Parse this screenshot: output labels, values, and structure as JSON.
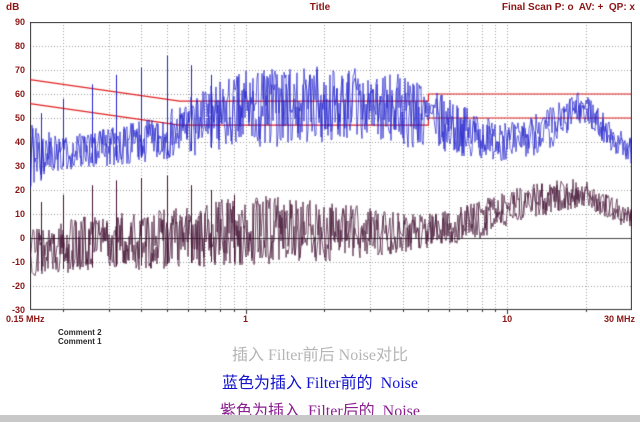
{
  "header": {
    "y_unit": "dB",
    "title": "Title",
    "scan_info": "Final Scan P: o  AV: +  QP: x",
    "text_color": "#8b1414"
  },
  "comments": {
    "comment2": "Comment 2",
    "comment1": "Comment 1"
  },
  "captions": [
    {
      "text": "插入 Filter前后 Noise对比",
      "color": "#b5b5b5"
    },
    {
      "text": "蓝色为插入 Filter前的  Noise",
      "color": "#1212cf"
    },
    {
      "text": "紫色为插入  Filter后的  Noise",
      "color": "#8a2090"
    }
  ],
  "chart_data": {
    "type": "line",
    "title": "Title",
    "x_axis": {
      "scale": "log",
      "unit": "MHz",
      "min_mhz": 0.15,
      "max_mhz": 30,
      "ticks": [
        {
          "label": "0.15 MHz",
          "mhz": 0.15,
          "align": "left"
        },
        {
          "label": "1",
          "mhz": 1,
          "align": "center"
        },
        {
          "label": "10",
          "mhz": 10,
          "align": "center"
        },
        {
          "label": "30 MHz",
          "mhz": 30,
          "align": "right"
        }
      ]
    },
    "y_axis": {
      "label": "dB",
      "min": -30,
      "max": 90,
      "step": 10,
      "tick_labels": [
        90,
        80,
        70,
        60,
        50,
        40,
        30,
        20,
        10,
        0,
        -10,
        -20,
        -30
      ]
    },
    "grid": {
      "show": true,
      "style": "dotted",
      "v_lines_mhz": [
        0.2,
        0.3,
        0.4,
        0.5,
        0.6,
        0.7,
        0.8,
        0.9,
        1,
        2,
        3,
        4,
        5,
        6,
        7,
        8,
        9,
        10,
        20
      ],
      "zero_line_db": 0
    },
    "limit_lines": [
      {
        "id": "limit-upper-qp",
        "marker": "QP: x",
        "color": "#e02020",
        "points_mhz_db": [
          [
            0.15,
            66
          ],
          [
            0.56,
            57
          ],
          [
            5,
            57
          ],
          [
            5,
            60
          ],
          [
            30,
            60
          ]
        ]
      },
      {
        "id": "limit-lower-av",
        "marker": "AV: +",
        "color": "#e02020",
        "points_mhz_db": [
          [
            0.15,
            56
          ],
          [
            0.56,
            47
          ],
          [
            5,
            47
          ],
          [
            5,
            50
          ],
          [
            30,
            50
          ]
        ]
      }
    ],
    "series": [
      {
        "id": "noise-before-filter",
        "label": "蓝色为插入 Filter前的 Noise",
        "color": "#2323cc",
        "seed": 7,
        "envelope_mhz_lo_hi": [
          [
            0.15,
            20,
            48
          ],
          [
            0.2,
            28,
            42
          ],
          [
            0.3,
            30,
            46
          ],
          [
            0.45,
            32,
            50
          ],
          [
            0.6,
            34,
            58
          ],
          [
            0.8,
            36,
            66
          ],
          [
            1,
            38,
            70
          ],
          [
            1.5,
            38,
            71
          ],
          [
            2,
            40,
            72
          ],
          [
            3,
            40,
            70
          ],
          [
            4,
            38,
            68
          ],
          [
            5,
            36,
            63
          ],
          [
            6,
            35,
            58
          ],
          [
            8,
            33,
            52
          ],
          [
            10,
            32,
            48
          ],
          [
            12,
            33,
            50
          ],
          [
            15,
            38,
            56
          ],
          [
            18,
            46,
            60
          ],
          [
            20,
            48,
            62
          ],
          [
            22,
            42,
            56
          ],
          [
            25,
            36,
            48
          ],
          [
            30,
            30,
            42
          ]
        ],
        "spikes_mhz_db": [
          [
            0.165,
            52
          ],
          [
            0.2,
            58
          ],
          [
            0.26,
            64
          ],
          [
            0.32,
            68
          ],
          [
            0.4,
            71
          ],
          [
            0.5,
            76
          ],
          [
            0.62,
            72
          ],
          [
            0.74,
            68
          ]
        ]
      },
      {
        "id": "noise-after-filter",
        "label": "紫色为插入 Filter后的 Noise",
        "color": "#441233",
        "seed": 13,
        "envelope_mhz_lo_hi": [
          [
            0.15,
            -16,
            6
          ],
          [
            0.2,
            -15,
            8
          ],
          [
            0.3,
            -14,
            10
          ],
          [
            0.5,
            -13,
            12
          ],
          [
            0.7,
            -12,
            15
          ],
          [
            1,
            -12,
            18
          ],
          [
            1.5,
            -10,
            17
          ],
          [
            2,
            -10,
            15
          ],
          [
            3,
            -8,
            13
          ],
          [
            4,
            -6,
            11
          ],
          [
            5,
            -5,
            10
          ],
          [
            6,
            -3,
            12
          ],
          [
            8,
            0,
            16
          ],
          [
            10,
            5,
            20
          ],
          [
            12,
            8,
            22
          ],
          [
            15,
            10,
            24
          ],
          [
            18,
            12,
            25
          ],
          [
            20,
            12,
            24
          ],
          [
            22,
            10,
            22
          ],
          [
            25,
            8,
            18
          ],
          [
            30,
            2,
            12
          ]
        ],
        "spikes_mhz_db": [
          [
            0.165,
            15
          ],
          [
            0.2,
            18
          ],
          [
            0.26,
            22
          ],
          [
            0.32,
            24
          ],
          [
            0.4,
            25
          ],
          [
            0.5,
            26
          ],
          [
            0.62,
            22
          ],
          [
            0.74,
            20
          ],
          [
            0.9,
            18
          ]
        ]
      }
    ]
  }
}
